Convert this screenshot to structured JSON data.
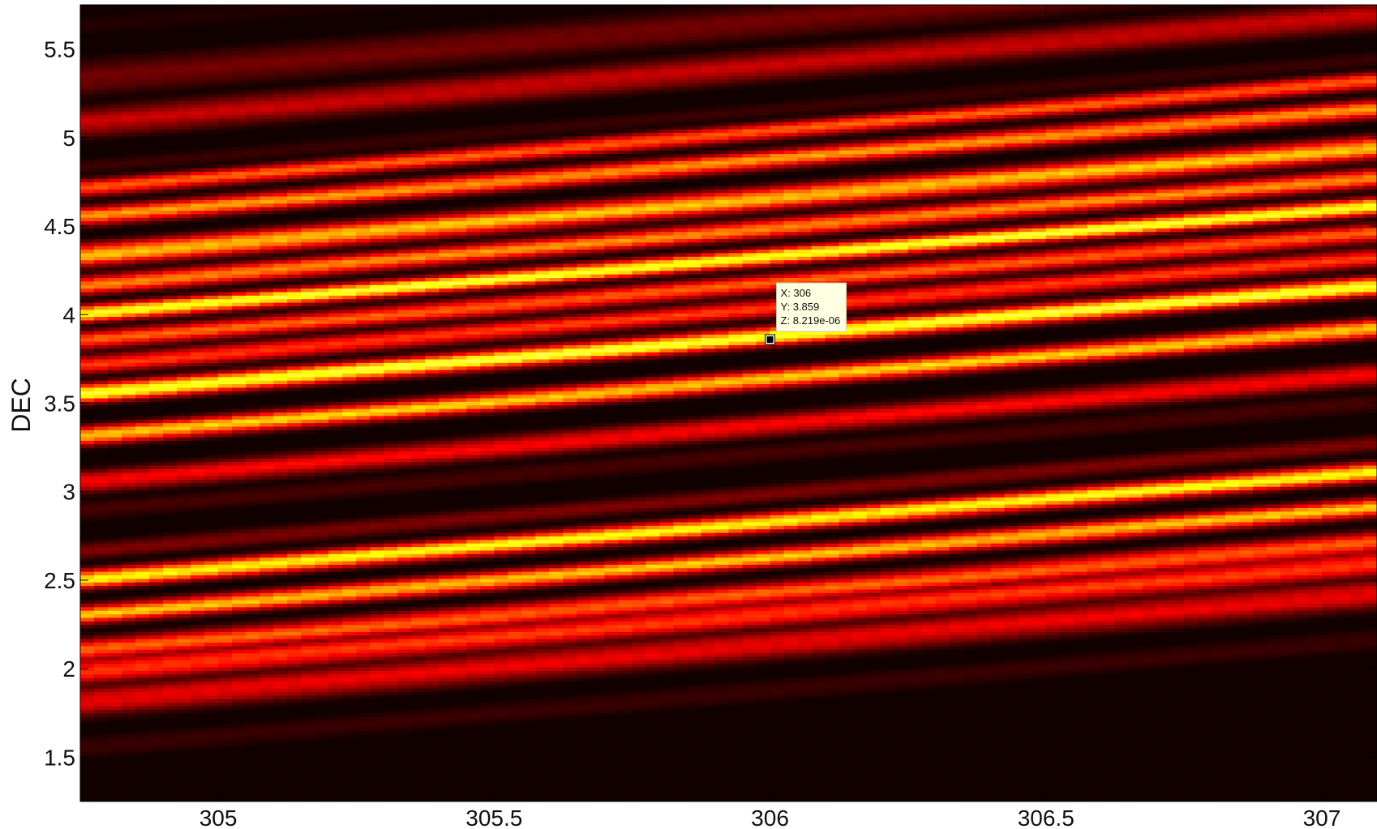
{
  "chart_data": {
    "type": "heatmap",
    "title": "",
    "xlabel": "",
    "ylabel": "DEC",
    "xlim": [
      304.75,
      307.1
    ],
    "ylim": [
      1.25,
      5.75
    ],
    "x_ticks": [
      305,
      305.5,
      306,
      306.5,
      307
    ],
    "x_tick_labels": [
      "305",
      "305.5",
      "306",
      "306.5",
      "307"
    ],
    "y_ticks": [
      1.5,
      2,
      2.5,
      3,
      3.5,
      4,
      4.5,
      5,
      5.5
    ],
    "y_tick_labels": [
      "1.5",
      "2",
      "2.5",
      "3",
      "3.5",
      "4",
      "4.5",
      "5",
      "5.5"
    ],
    "colormap": "hot",
    "colors": {
      "low": "#000000",
      "mid": "#e00000",
      "high": "#ffff40"
    },
    "band_slope_dec_per_ra": 0.26,
    "band_reference_ra": 305.0,
    "bands_at_reference_ra": [
      {
        "dec": 1.38,
        "intensity": 0.02,
        "width": 0.09
      },
      {
        "dec": 1.62,
        "intensity": 0.1,
        "width": 0.07
      },
      {
        "dec": 1.88,
        "intensity": 0.42,
        "width": 0.08
      },
      {
        "dec": 2.05,
        "intensity": 0.55,
        "width": 0.07
      },
      {
        "dec": 2.17,
        "intensity": 0.62,
        "width": 0.06
      },
      {
        "dec": 2.37,
        "intensity": 0.8,
        "width": 0.05
      },
      {
        "dec": 2.57,
        "intensity": 0.92,
        "width": 0.05
      },
      {
        "dec": 2.73,
        "intensity": 0.22,
        "width": 0.05
      },
      {
        "dec": 2.96,
        "intensity": 0.12,
        "width": 0.06
      },
      {
        "dec": 3.12,
        "intensity": 0.45,
        "width": 0.06
      },
      {
        "dec": 3.38,
        "intensity": 0.82,
        "width": 0.05
      },
      {
        "dec": 3.62,
        "intensity": 1.0,
        "width": 0.05
      },
      {
        "dec": 3.78,
        "intensity": 0.55,
        "width": 0.05
      },
      {
        "dec": 3.92,
        "intensity": 0.62,
        "width": 0.05
      },
      {
        "dec": 4.07,
        "intensity": 0.98,
        "width": 0.045
      },
      {
        "dec": 4.23,
        "intensity": 0.7,
        "width": 0.05
      },
      {
        "dec": 4.4,
        "intensity": 0.8,
        "width": 0.06
      },
      {
        "dec": 4.62,
        "intensity": 0.72,
        "width": 0.05
      },
      {
        "dec": 4.78,
        "intensity": 0.62,
        "width": 0.045
      },
      {
        "dec": 4.9,
        "intensity": 0.1,
        "width": 0.05
      },
      {
        "dec": 5.15,
        "intensity": 0.35,
        "width": 0.08
      },
      {
        "dec": 5.4,
        "intensity": 0.2,
        "width": 0.1
      },
      {
        "dec": 5.7,
        "intensity": 0.06,
        "width": 0.08
      }
    ],
    "datatip": {
      "x": 306,
      "y": 3.859,
      "lines": [
        "X: 306",
        "Y: 3.859",
        "Z: 8.219e-06"
      ]
    }
  }
}
